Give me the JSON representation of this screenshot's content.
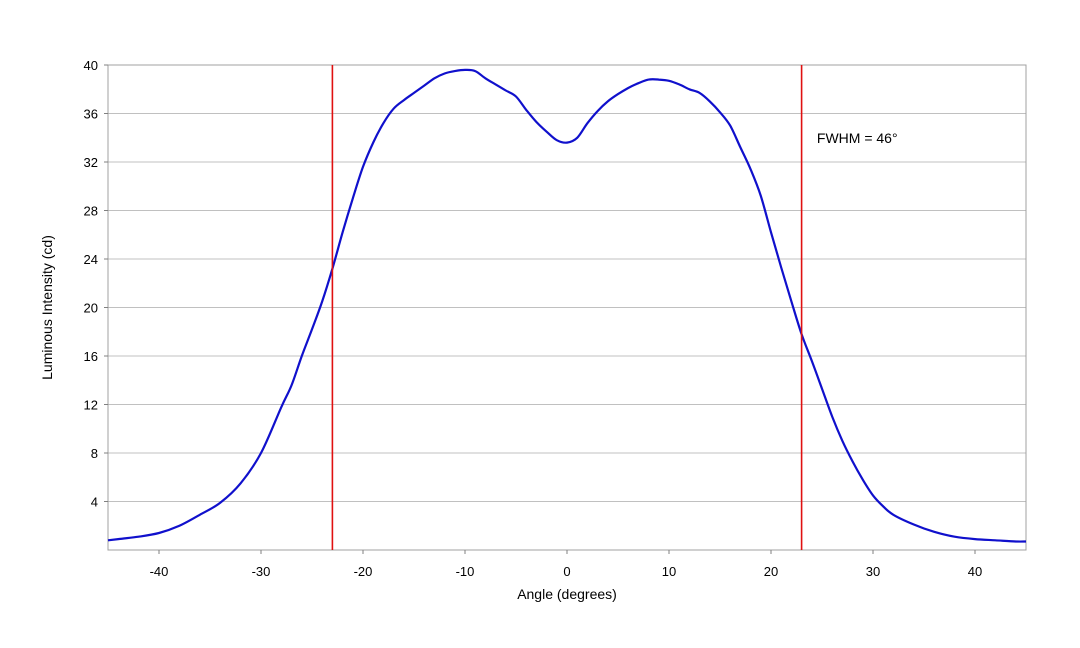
{
  "chart_data": {
    "type": "line",
    "title": "",
    "xlabel": "Angle (degrees)",
    "ylabel": "Luminous Intensity (cd)",
    "xlim": [
      -45,
      45
    ],
    "ylim": [
      0,
      40
    ],
    "x_ticks": [
      -40,
      -30,
      -20,
      -10,
      0,
      10,
      20,
      30,
      40
    ],
    "y_ticks": [
      4,
      8,
      12,
      16,
      20,
      24,
      28,
      32,
      36,
      40
    ],
    "grid": "horizontal",
    "legend": "none",
    "series": [
      {
        "color": "#1010cc",
        "x": [
          -45,
          -44,
          -42,
          -40,
          -38,
          -36,
          -34,
          -32,
          -30,
          -28,
          -27,
          -26,
          -25,
          -24,
          -23,
          -22,
          -21,
          -20,
          -19,
          -18,
          -17,
          -16,
          -15,
          -14,
          -13,
          -12,
          -11,
          -10,
          -9,
          -8,
          -7,
          -6,
          -5,
          -4,
          -3,
          -2,
          -1,
          0,
          1,
          2,
          3,
          4,
          5,
          6,
          7,
          8,
          9,
          10,
          11,
          12,
          13,
          14,
          15,
          16,
          17,
          18,
          19,
          20,
          21,
          22,
          23,
          24,
          25,
          26,
          27,
          28,
          29,
          30,
          31,
          32,
          34,
          36,
          38,
          40,
          42,
          44,
          45
        ],
        "y": [
          0.8,
          0.9,
          1.1,
          1.4,
          2.0,
          2.9,
          3.9,
          5.5,
          8.0,
          11.8,
          13.6,
          16.0,
          18.2,
          20.5,
          23.2,
          26.2,
          29.0,
          31.6,
          33.6,
          35.2,
          36.4,
          37.1,
          37.7,
          38.3,
          38.9,
          39.3,
          39.5,
          39.6,
          39.5,
          38.9,
          38.4,
          37.9,
          37.4,
          36.3,
          35.3,
          34.5,
          33.8,
          33.6,
          34.0,
          35.2,
          36.2,
          37.0,
          37.6,
          38.1,
          38.5,
          38.8,
          38.8,
          38.7,
          38.4,
          38.0,
          37.7,
          37.0,
          36.1,
          35.0,
          33.2,
          31.4,
          29.2,
          26.2,
          23.3,
          20.5,
          17.8,
          15.6,
          13.3,
          11.0,
          9.0,
          7.3,
          5.8,
          4.5,
          3.6,
          2.9,
          2.1,
          1.5,
          1.1,
          0.9,
          0.8,
          0.7,
          0.7
        ]
      }
    ],
    "vertical_lines": [
      {
        "x": -23,
        "color": "#e01010"
      },
      {
        "x": 23,
        "color": "#e01010"
      }
    ],
    "annotations": [
      {
        "text": "FWHM = 46°",
        "x": 24.5,
        "y": 34
      }
    ]
  }
}
